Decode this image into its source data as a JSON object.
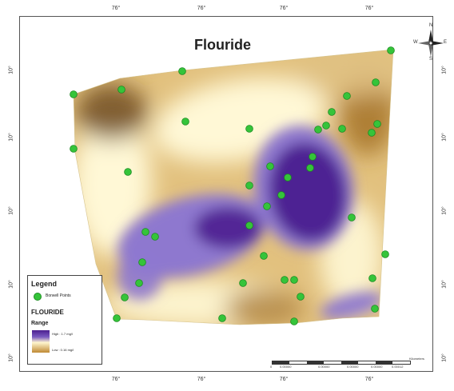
{
  "map": {
    "title": "Flouride",
    "ticks_top": [
      "76°",
      "76°",
      "76°",
      "76°"
    ],
    "ticks_bottom": [
      "76°",
      "76°",
      "76°",
      "76°"
    ],
    "ticks_left": [
      "10°",
      "10°",
      "10°",
      "10°",
      "10°"
    ],
    "ticks_right": [
      "10°",
      "10°",
      "10°",
      "10°",
      "10°"
    ]
  },
  "north_arrow": {
    "n": "N",
    "s": "S",
    "e": "E",
    "w": "W",
    "icon": "compass-rose-icon"
  },
  "legend": {
    "title": "Legend",
    "symbol_label": "Borwell Points",
    "layer_name": "FLOURIDE",
    "range_title": "Range",
    "high_label": "High : 1.7 mg/l",
    "low_label": "Low : 0.16 mg/l",
    "colors": {
      "high": "#4b1f8f",
      "mid": "#fff6cf",
      "low": "#c08a34",
      "point": "#35c43a"
    }
  },
  "scale_bar": {
    "labels": [
      "0",
      "0.00000",
      "0.00000",
      "0.00000",
      "0.00000",
      "0.00012"
    ],
    "unit": "Kilometers"
  },
  "colors": {
    "high": "#4b1f8f",
    "mid_high": "#8e78cf",
    "mid": "#fff8d6",
    "mid_low": "#e0c183",
    "low": "#a9782f",
    "lowest": "#6e4a1d",
    "point_fill": "#35c43a",
    "point_stroke": "#1b8a20"
  }
}
